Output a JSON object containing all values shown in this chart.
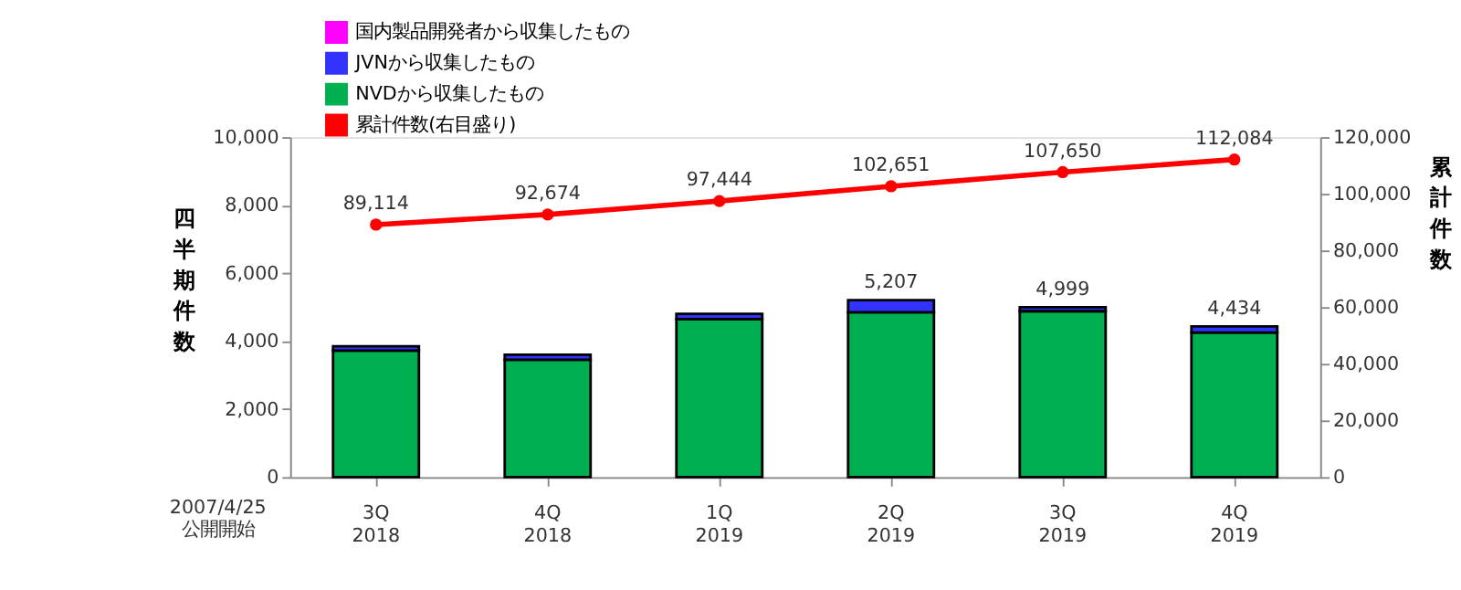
{
  "chart_data": {
    "type": "bar",
    "stacked": true,
    "categories": [
      "3Q\n2018",
      "4Q\n2018",
      "1Q\n2019",
      "2Q\n2019",
      "3Q\n2019",
      "4Q\n2019"
    ],
    "series": [
      {
        "name": "NVDから収集したもの",
        "color": "#00b050",
        "values": [
          3720,
          3450,
          4650,
          4850,
          4880,
          4250
        ]
      },
      {
        "name": "JVNから収集したもの",
        "color": "#3333ff",
        "values": [
          130,
          150,
          150,
          357,
          119,
          184
        ]
      },
      {
        "name": "国内製品開発者から収集したもの",
        "color": "#ff00ff",
        "values": [
          null,
          null,
          null,
          null,
          null,
          null
        ]
      },
      {
        "name": "累計件数(右目盛り)",
        "color": "#ff0000",
        "type": "line",
        "axis": "y2",
        "marker": "circle",
        "values": [
          89114,
          92674,
          97444,
          102651,
          107650,
          112084
        ],
        "value_labels": [
          "89,114",
          "92,674",
          "97,444",
          "102,651",
          "107,650",
          "112,084"
        ]
      }
    ],
    "totals": [
      null,
      null,
      null,
      "5,207",
      "4,999",
      "4,434"
    ],
    "ylabel": "四半期件数",
    "y2label": "累計件数",
    "ylim": [
      0,
      10000
    ],
    "yticks": [
      0,
      {
        "value": 2000,
        "label": "2,000"
      },
      {
        "value": 4000,
        "label": "4,000"
      },
      {
        "value": 6000,
        "label": "6,000"
      },
      {
        "value": 8000,
        "label": "8,000"
      },
      {
        "value": 10000,
        "label": "10,000"
      }
    ],
    "y2lim": [
      0,
      120000
    ],
    "y2ticks": [
      0,
      {
        "value": 20000,
        "label": "20,000"
      },
      {
        "value": 40000,
        "label": "40,000"
      },
      {
        "value": 60000,
        "label": "60,000"
      },
      {
        "value": 80000,
        "label": "80,000"
      },
      {
        "value": 100000,
        "label": "100,000"
      },
      {
        "value": 120000,
        "label": "120,000"
      }
    ],
    "annotations": [
      "2007/4/25\n公開開始"
    ],
    "grid": false,
    "legend": "top left"
  }
}
